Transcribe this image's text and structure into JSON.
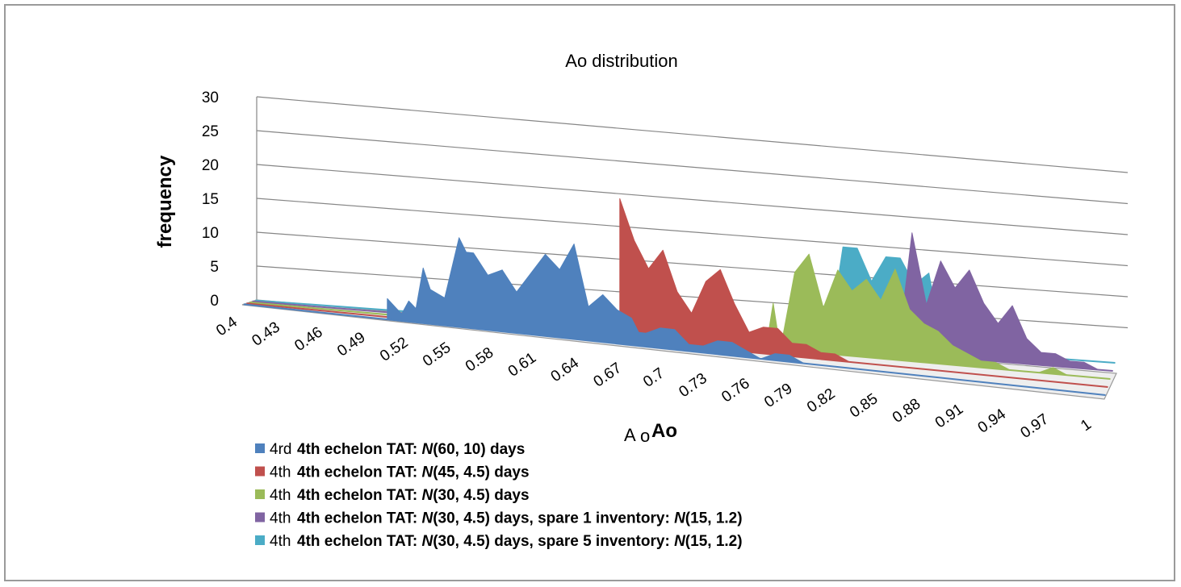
{
  "chart_data": {
    "type": "area",
    "title": "Ao distribution",
    "xlabel": "Ao",
    "ylabel": "frequency",
    "ylim": [
      0,
      30
    ],
    "yticks": [
      0,
      5,
      10,
      15,
      20,
      25,
      30
    ],
    "x": [
      0.4,
      0.43,
      0.46,
      0.49,
      0.52,
      0.55,
      0.58,
      0.61,
      0.64,
      0.67,
      0.7,
      0.73,
      0.76,
      0.79,
      0.82,
      0.85,
      0.88,
      0.91,
      0.94,
      0.97,
      1
    ],
    "grid": true,
    "legend_position": "bottom-left",
    "series": [
      {
        "name": "4th echelon TAT: N(60, 10) days",
        "ghost_name": "4rd",
        "color": "#4f81bd",
        "x": [
          0.5,
          0.51,
          0.515,
          0.52,
          0.525,
          0.53,
          0.54,
          0.55,
          0.555,
          0.56,
          0.57,
          0.58,
          0.59,
          0.6,
          0.61,
          0.62,
          0.63,
          0.64,
          0.65,
          0.66,
          0.67,
          0.675,
          0.68,
          0.69,
          0.7,
          0.71,
          0.72,
          0.73,
          0.74,
          0.75,
          0.76,
          0.77,
          0.78,
          0.79,
          0.8,
          0.81,
          0.82,
          0.83,
          0.84,
          0.85
        ],
        "values": [
          3,
          1,
          3,
          2,
          8,
          5,
          4,
          13,
          11,
          11,
          8,
          9,
          6,
          9,
          12,
          10,
          14,
          5,
          7,
          5,
          4,
          2,
          2,
          3,
          3,
          1,
          1,
          2,
          2,
          1,
          0,
          1,
          1,
          0,
          0,
          0,
          0,
          0,
          0,
          0
        ]
      },
      {
        "name": "4th echelon TAT: N(45, 4.5) days",
        "ghost_name": "4th",
        "color": "#c0504d",
        "x": [
          0.66,
          0.67,
          0.68,
          0.69,
          0.7,
          0.71,
          0.72,
          0.73,
          0.74,
          0.75,
          0.76,
          0.77,
          0.78,
          0.79,
          0.8,
          0.81,
          0.82,
          0.83,
          0.84,
          0.85
        ],
        "values": [
          21,
          15,
          11,
          14,
          8,
          5,
          10,
          12,
          7,
          3,
          4,
          4,
          2,
          2,
          1,
          1,
          0,
          0,
          0,
          0
        ]
      },
      {
        "name": "4th echelon TAT: N(30, 4.5) days",
        "ghost_name": "4th",
        "color": "#9bbb59",
        "x": [
          0.76,
          0.765,
          0.77,
          0.78,
          0.79,
          0.8,
          0.81,
          0.82,
          0.83,
          0.84,
          0.85,
          0.86,
          0.87,
          0.88,
          0.89,
          0.9,
          0.91,
          0.92,
          0.93,
          0.94,
          0.95,
          0.96,
          0.97
        ],
        "values": [
          0,
          7,
          0,
          12,
          15,
          7,
          13,
          10,
          12,
          9,
          14,
          8,
          6,
          5,
          3,
          2,
          1,
          1,
          0,
          0,
          0,
          1,
          0
        ]
      },
      {
        "name": "4th echelon TAT: N(30, 4.5) days, spare 1 inventory: N(15, 1.2)",
        "ghost_name": "4th",
        "color": "#8064a2",
        "x": [
          0.85,
          0.86,
          0.87,
          0.88,
          0.89,
          0.9,
          0.91,
          0.92,
          0.93,
          0.94,
          0.95,
          0.96,
          0.97,
          0.98,
          0.99,
          1
        ],
        "values": [
          0,
          19,
          8,
          15,
          11,
          14,
          9,
          6,
          9,
          4,
          2,
          2,
          1,
          1,
          0,
          0
        ]
      },
      {
        "name": "4th echelon TAT: N(30, 4.5) days, spare 5 inventory: N(15, 1.2)",
        "ghost_name": "4th",
        "color": "#4bacc6",
        "x": [
          0.8,
          0.81,
          0.82,
          0.83,
          0.84,
          0.85,
          0.86,
          0.87,
          0.88
        ],
        "values": [
          0,
          15,
          15,
          10,
          14,
          14,
          10,
          12,
          0
        ]
      }
    ]
  }
}
